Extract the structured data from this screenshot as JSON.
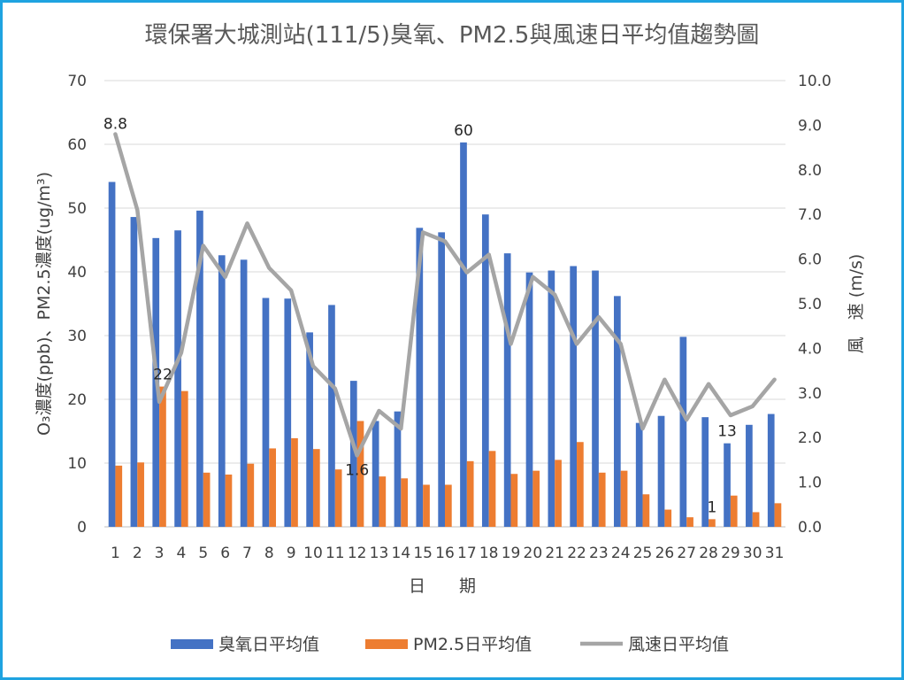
{
  "chart_data": {
    "type": "bar",
    "title": "環保署大城測站(111/5)臭氧、PM2.5與風速日平均值趨勢圖",
    "xlabel": "日　　期",
    "ylabel": "O₃濃度(ppb)、PM2.5濃度(ug/m³)",
    "y2label": "風　速 (m/s)",
    "ylim": [
      0,
      70
    ],
    "y2lim": [
      0,
      10
    ],
    "yticks": [
      "0",
      "10",
      "20",
      "30",
      "40",
      "50",
      "60",
      "70"
    ],
    "y2ticks": [
      "0.0",
      "1.0",
      "2.0",
      "3.0",
      "4.0",
      "5.0",
      "6.0",
      "7.0",
      "8.0",
      "9.0",
      "10.0"
    ],
    "grid": true,
    "legend_position": "bottom",
    "categories": [
      "1",
      "2",
      "3",
      "4",
      "5",
      "6",
      "7",
      "8",
      "9",
      "10",
      "11",
      "12",
      "13",
      "14",
      "15",
      "16",
      "17",
      "18",
      "19",
      "20",
      "21",
      "22",
      "23",
      "24",
      "25",
      "26",
      "27",
      "28",
      "29",
      "30",
      "31"
    ],
    "series": [
      {
        "name": "臭氧日平均值",
        "type": "bar",
        "axis": "left",
        "color": "#4472c4",
        "values": [
          54.1,
          48.6,
          45.3,
          46.5,
          49.6,
          42.6,
          41.9,
          35.9,
          35.8,
          30.5,
          34.8,
          22.9,
          16.6,
          18.1,
          46.9,
          46.2,
          60.3,
          49.0,
          42.9,
          39.9,
          40.2,
          40.9,
          40.2,
          36.2,
          16.3,
          17.4,
          29.8,
          17.2,
          13.1,
          16.0,
          17.7
        ]
      },
      {
        "name": "PM2.5日平均值",
        "type": "bar",
        "axis": "left",
        "color": "#ed7d31",
        "values": [
          9.6,
          10.1,
          22.0,
          21.3,
          8.5,
          8.2,
          9.9,
          12.3,
          13.9,
          12.2,
          9.0,
          16.6,
          7.9,
          7.6,
          6.6,
          6.6,
          10.3,
          11.9,
          8.3,
          8.8,
          10.5,
          13.3,
          8.5,
          8.8,
          5.1,
          2.7,
          1.5,
          1.2,
          4.9,
          2.3,
          3.7
        ]
      },
      {
        "name": "風速日平均值",
        "type": "line",
        "axis": "right",
        "color": "#a5a5a5",
        "values": [
          8.8,
          7.1,
          2.8,
          3.9,
          6.3,
          5.6,
          6.8,
          5.8,
          5.3,
          3.6,
          3.1,
          1.6,
          2.6,
          2.2,
          6.6,
          6.4,
          5.7,
          6.1,
          4.1,
          5.6,
          5.2,
          4.1,
          4.7,
          4.1,
          2.2,
          3.3,
          2.4,
          3.2,
          2.5,
          2.7,
          3.3
        ]
      }
    ],
    "data_labels": [
      {
        "series": 2,
        "index": 0,
        "text": "8.8"
      },
      {
        "series": 1,
        "index": 2,
        "text": "22"
      },
      {
        "series": 2,
        "index": 11,
        "text": "1.6"
      },
      {
        "series": 0,
        "index": 16,
        "text": "60"
      },
      {
        "series": 1,
        "index": 27,
        "text": "1"
      },
      {
        "series": 0,
        "index": 28,
        "text": "13"
      }
    ]
  }
}
